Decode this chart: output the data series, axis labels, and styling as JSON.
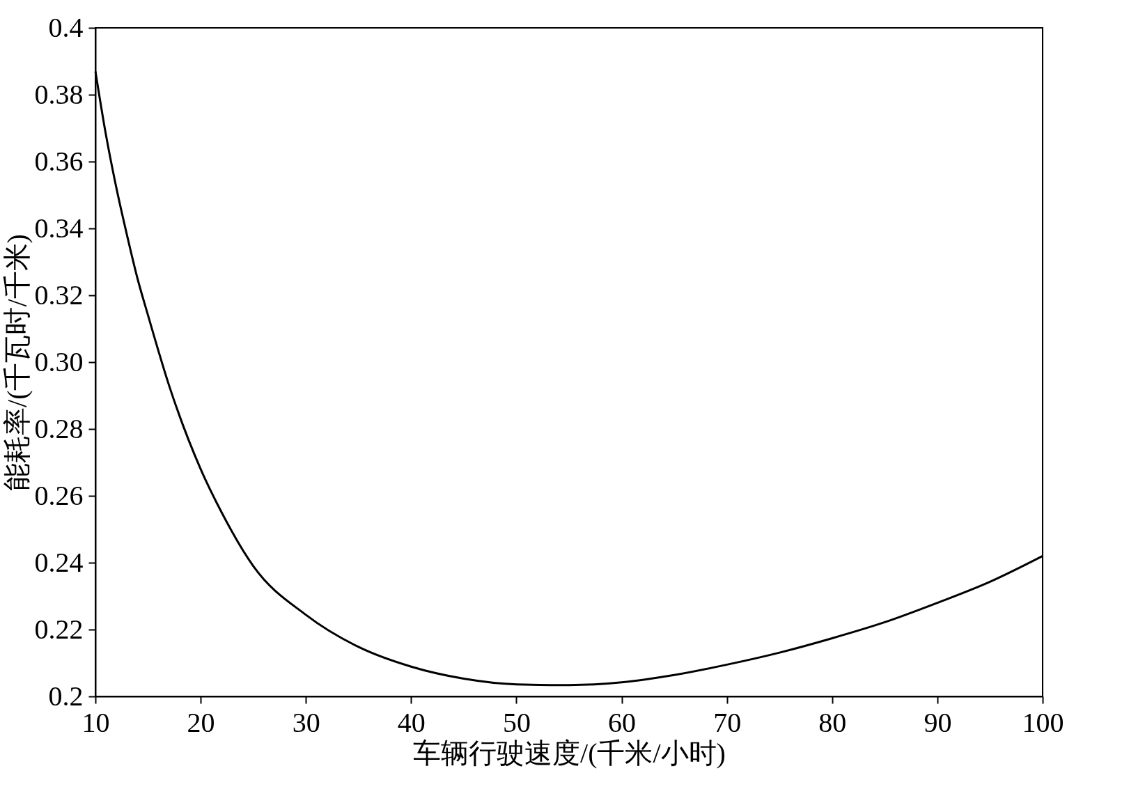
{
  "chart_data": {
    "type": "line",
    "xlabel": "车辆行驶速度/(千米/小时)",
    "ylabel": "能耗率/(千瓦时/千米)",
    "x": [
      10,
      11,
      12,
      13,
      14,
      15,
      17,
      20,
      22,
      25,
      30,
      35,
      40,
      45,
      50,
      55,
      60,
      65,
      70,
      75,
      80,
      85,
      90,
      95,
      100
    ],
    "series": [
      {
        "color": "#000000",
        "values": [
          0.387,
          0.368,
          0.352,
          0.338,
          0.325,
          0.314,
          0.293,
          0.268,
          0.255,
          0.239,
          0.2244,
          0.2148,
          0.2089,
          0.2053,
          0.2036,
          0.2034,
          0.2042,
          0.2064,
          0.2095,
          0.2131,
          0.2174,
          0.2222,
          0.228,
          0.2343,
          0.242
        ]
      }
    ],
    "xlim": [
      10,
      100
    ],
    "xticks": [
      10,
      20,
      30,
      40,
      50,
      60,
      70,
      80,
      90,
      100
    ],
    "ylim": [
      0.2,
      0.4
    ],
    "yticks": [
      {
        "value": 0.2,
        "label": "0.2"
      },
      0.22,
      0.24,
      0.26,
      0.28,
      {
        "value": 0.3,
        "label": "0.30"
      },
      0.32,
      0.34,
      0.36,
      0.38,
      {
        "value": 0.4,
        "label": "0.4"
      }
    ],
    "grid": false,
    "marker": "none",
    "line_style": "solid"
  }
}
